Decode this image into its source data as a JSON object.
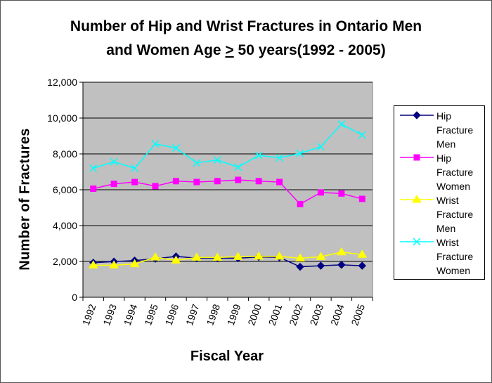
{
  "chart_data": {
    "type": "line",
    "title_line1": "Number of Hip and Wrist Fractures in Ontario Men",
    "title_line2_pre": "and Women Age ",
    "title_line2_symbol": ">",
    "title_line2_post": " 50 years(1992 - 2005)",
    "xlabel": "Fiscal Year",
    "ylabel": "Number of Fractures",
    "ylim": [
      0,
      12000
    ],
    "yticks": [
      "0",
      "2,000",
      "4,000",
      "6,000",
      "8,000",
      "10,000",
      "12,000"
    ],
    "ytick_values": [
      0,
      2000,
      4000,
      6000,
      8000,
      10000,
      12000
    ],
    "categories": [
      "1992",
      "1993",
      "1994",
      "1995",
      "1996",
      "1997",
      "1998",
      "1999",
      "2000",
      "2001",
      "2002",
      "2003",
      "2004",
      "2005"
    ],
    "grid": "horizontal",
    "plot_background": "#c0c0c0",
    "legend_position": "right",
    "series": [
      {
        "name": "Hip Fracture Men",
        "legend_lines": [
          "Hip",
          "Fracture",
          "Men"
        ],
        "color": "#000080",
        "marker": "diamond",
        "values": [
          1930,
          1990,
          2050,
          2150,
          2280,
          2180,
          2180,
          2180,
          2250,
          2230,
          1700,
          1760,
          1810,
          1760
        ]
      },
      {
        "name": "Hip Fracture Women",
        "legend_lines": [
          "Hip",
          "Fracture",
          "Women"
        ],
        "color": "#ff00ff",
        "marker": "square",
        "values": [
          6060,
          6330,
          6430,
          6200,
          6480,
          6430,
          6480,
          6550,
          6480,
          6430,
          5200,
          5850,
          5790,
          5490
        ]
      },
      {
        "name": "Wrist Fracture Men",
        "legend_lines": [
          "Wrist",
          "Fracture",
          "Men"
        ],
        "color": "#ffff00",
        "marker": "triangle",
        "values": [
          1790,
          1790,
          1860,
          2230,
          2060,
          2220,
          2220,
          2260,
          2280,
          2280,
          2180,
          2260,
          2520,
          2380
        ]
      },
      {
        "name": "Wrist Fracture Women",
        "legend_lines": [
          "Wrist",
          "Fracture",
          "Women"
        ],
        "color": "#00ffff",
        "marker": "x",
        "values": [
          7200,
          7560,
          7200,
          8560,
          8330,
          7500,
          7660,
          7260,
          7920,
          7780,
          8030,
          8400,
          9660,
          9060
        ]
      }
    ]
  }
}
